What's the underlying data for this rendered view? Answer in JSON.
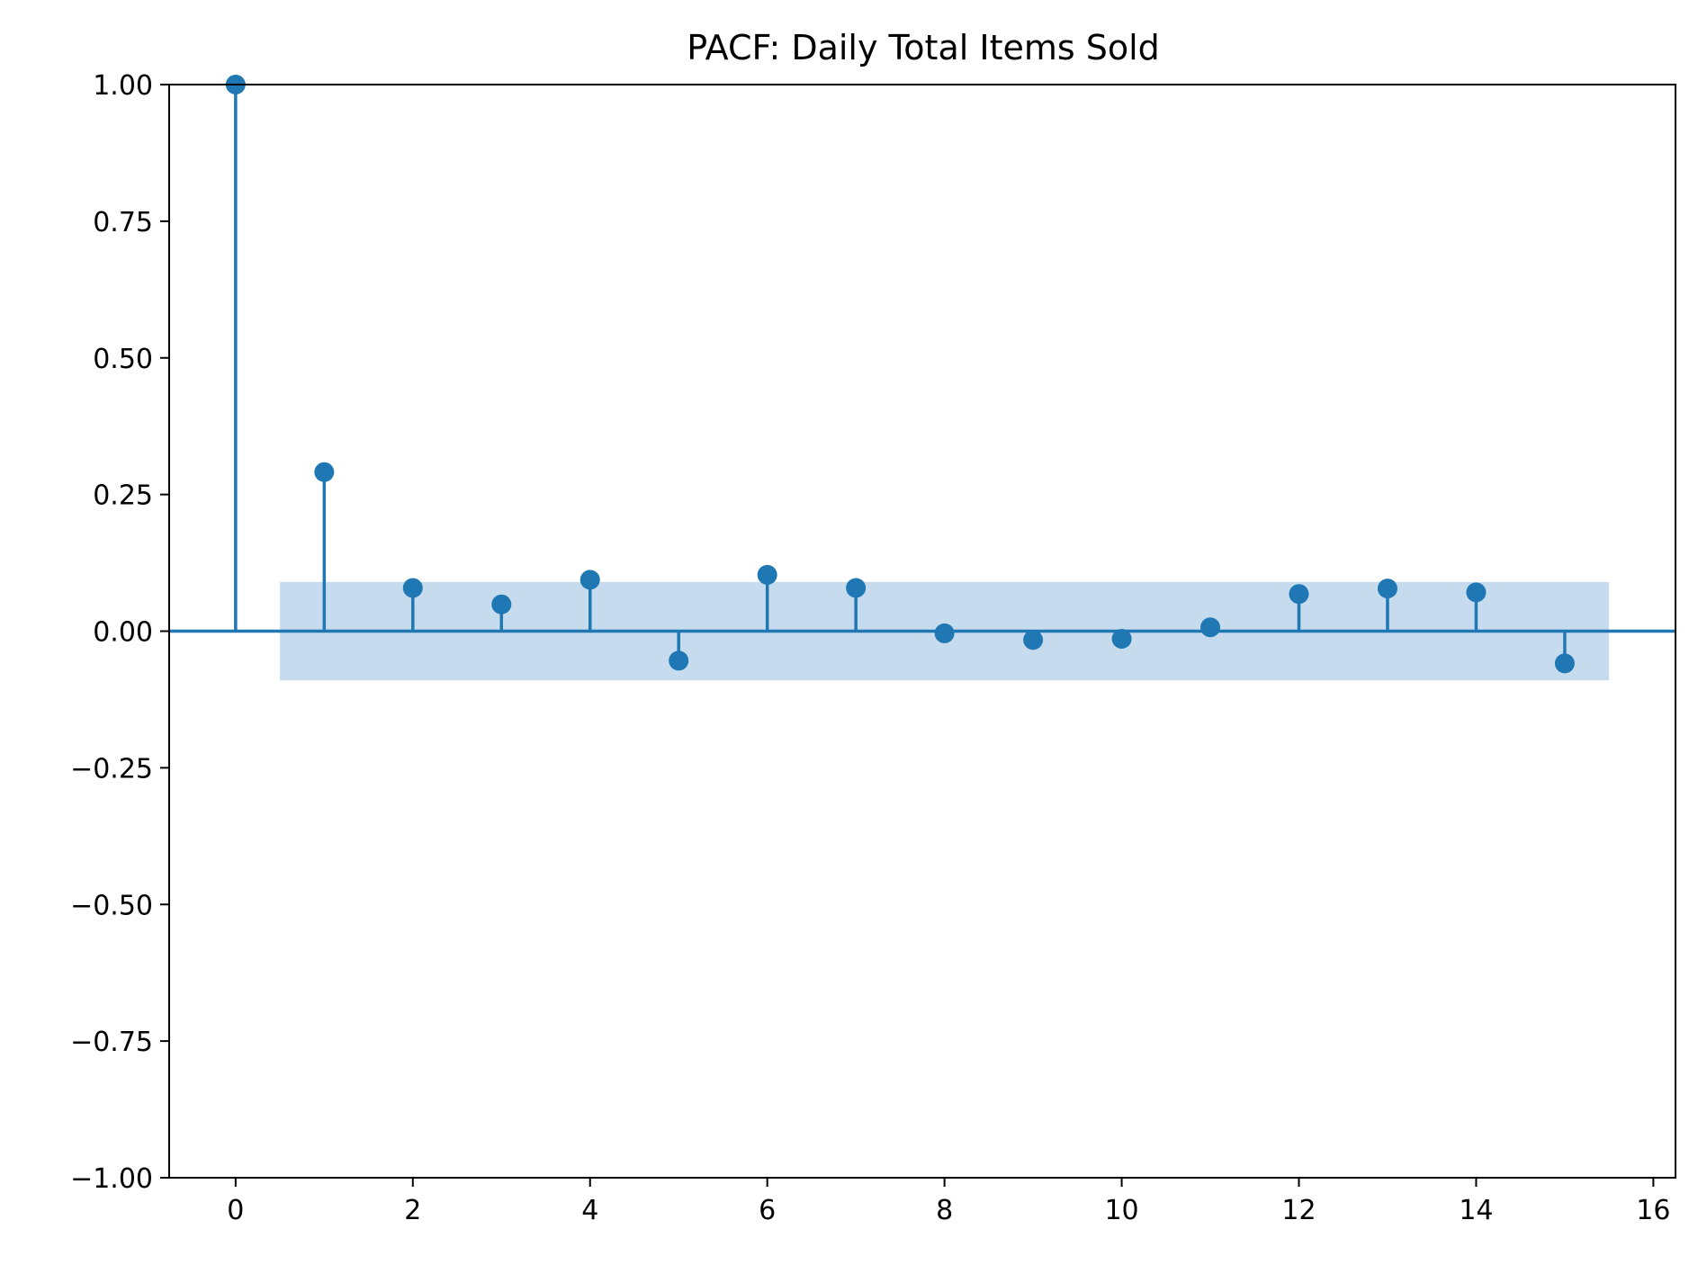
{
  "chart_data": {
    "type": "scatter",
    "subtype": "stem",
    "title": "PACF: Daily Total Items Sold",
    "xlabel": "",
    "ylabel": "",
    "xlim": [
      -0.75,
      16.25
    ],
    "ylim": [
      -1.0,
      1.0
    ],
    "x_ticks": [
      0,
      2,
      4,
      6,
      8,
      10,
      12,
      14,
      16
    ],
    "x_tick_labels": [
      "0",
      "2",
      "4",
      "6",
      "8",
      "10",
      "12",
      "14",
      "16"
    ],
    "y_ticks": [
      1.0,
      0.75,
      0.5,
      0.25,
      0.0,
      -0.25,
      -0.5,
      -0.75,
      -1.0
    ],
    "y_tick_labels": [
      "1.00",
      "0.75",
      "0.50",
      "0.25",
      "0.00",
      "−0.25",
      "−0.50",
      "−0.75",
      "−1.00"
    ],
    "series": [
      {
        "x": [
          0,
          1,
          2,
          3,
          4,
          5,
          6,
          7,
          8,
          9,
          10,
          11,
          12,
          13,
          14,
          15
        ],
        "values": [
          1.0,
          0.291,
          0.079,
          0.049,
          0.094,
          -0.054,
          0.103,
          0.079,
          -0.004,
          -0.016,
          -0.014,
          0.007,
          0.068,
          0.078,
          0.071,
          -0.059
        ]
      }
    ],
    "confidence_band": {
      "x_range": [
        0.5,
        15.5
      ],
      "lower": -0.09,
      "upper": 0.09
    },
    "grid": false,
    "colors": {
      "stem": "#1f77b4",
      "band": "#c6dcee",
      "axis": "#000000"
    }
  }
}
